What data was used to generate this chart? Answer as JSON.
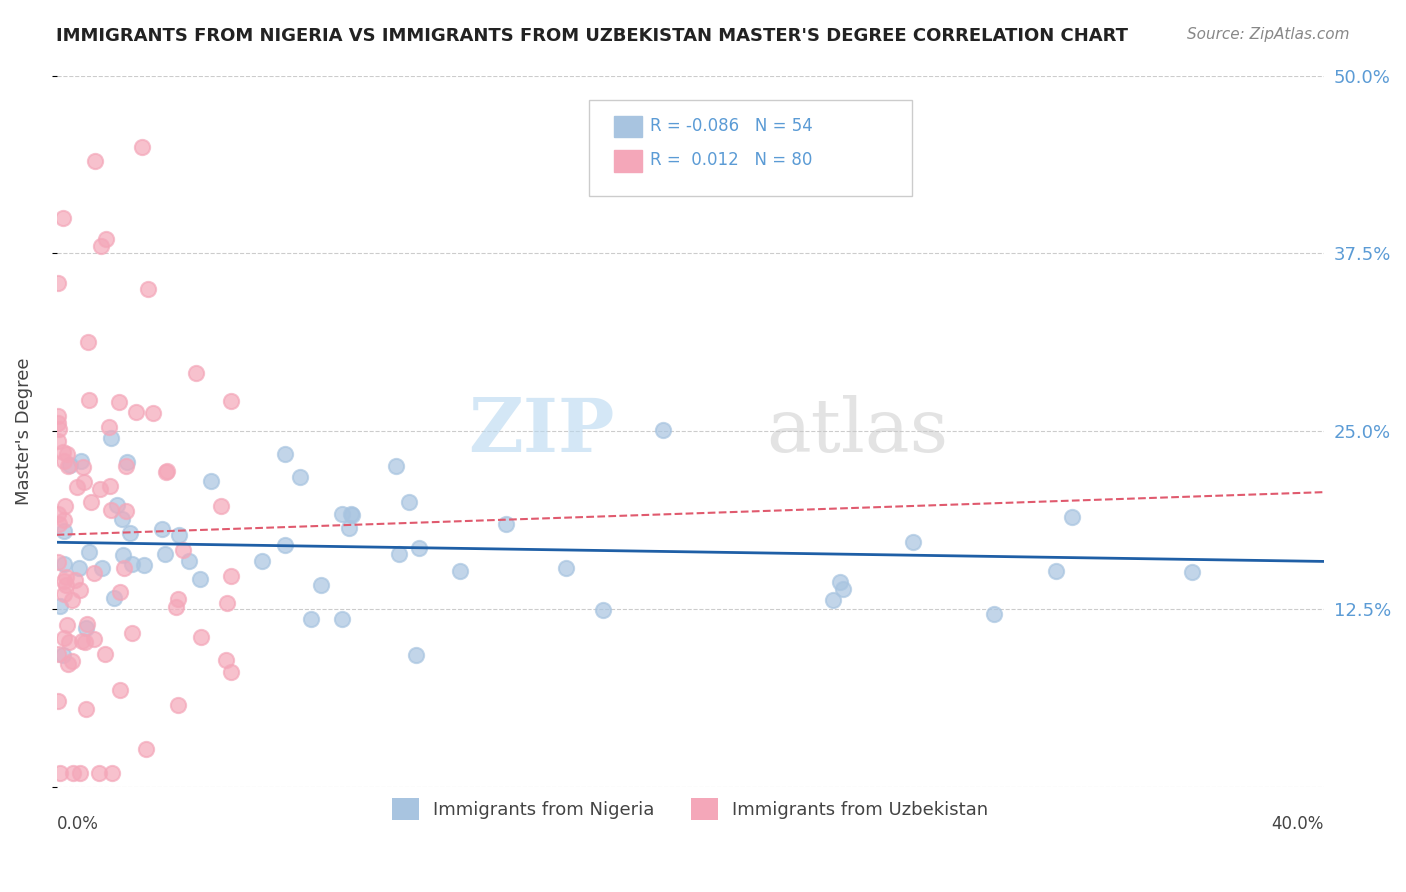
{
  "title": "IMMIGRANTS FROM NIGERIA VS IMMIGRANTS FROM UZBEKISTAN MASTER'S DEGREE CORRELATION CHART",
  "source": "Source: ZipAtlas.com",
  "ylabel": "Master's Degree",
  "xmin": 0.0,
  "xmax": 0.4,
  "ymin": 0.0,
  "ymax": 0.5,
  "yticks": [
    0.0,
    0.125,
    0.25,
    0.375,
    0.5
  ],
  "ytick_labels": [
    "",
    "12.5%",
    "25.0%",
    "37.5%",
    "50.0%"
  ],
  "nigeria_R": -0.086,
  "nigeria_N": 54,
  "uzbekistan_R": 0.012,
  "uzbekistan_N": 80,
  "nigeria_color": "#a8c4e0",
  "uzbekistan_color": "#f4a7b9",
  "nigeria_line_color": "#1f5fa6",
  "uzbekistan_line_color": "#e05a6e",
  "legend_nigeria_label": "Immigrants from Nigeria",
  "legend_uzbekistan_label": "Immigrants from Uzbekistan",
  "watermark_zip": "ZIP",
  "watermark_atlas": "atlas"
}
